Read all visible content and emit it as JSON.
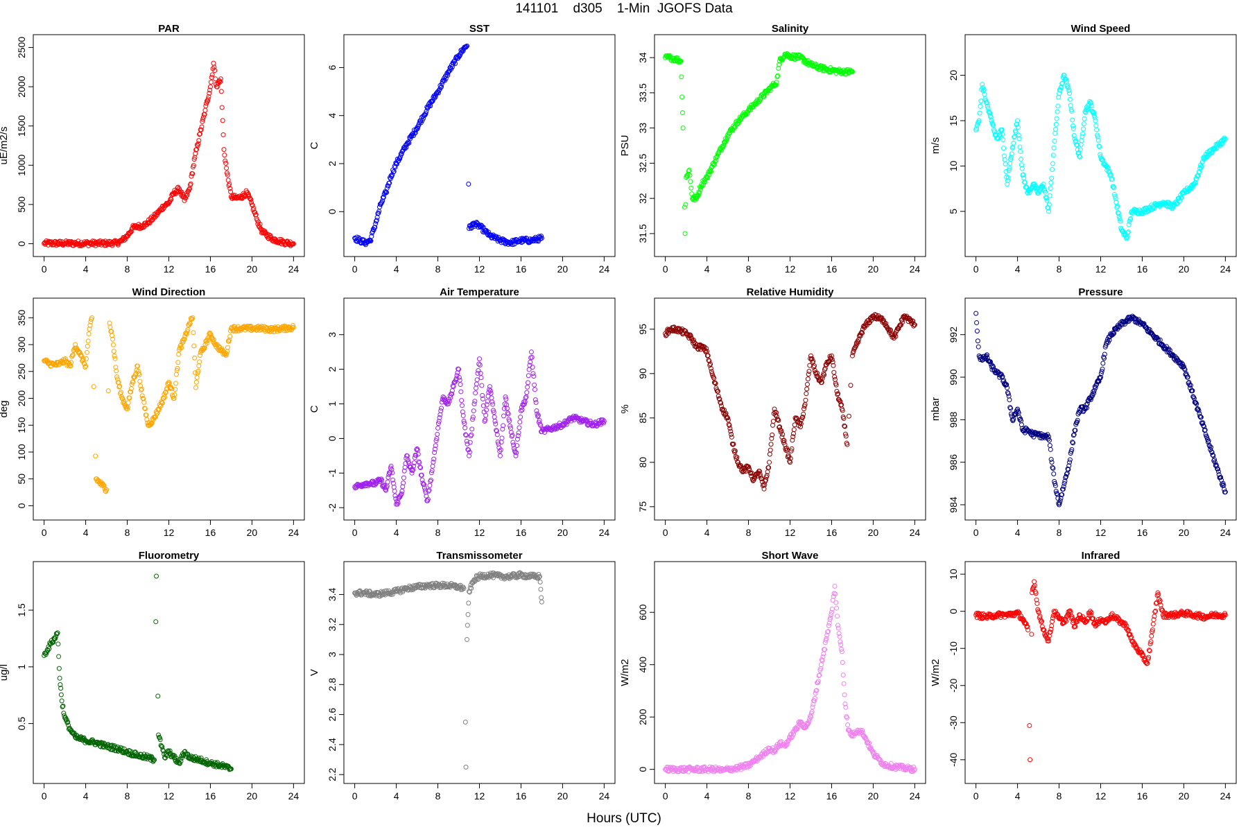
{
  "page": {
    "title": "141101    d305    1-Min  JGOFS Data",
    "xlabel": "Hours (UTC)"
  },
  "chart_data": [
    {
      "type": "scatter",
      "title": "PAR",
      "ylabel": "uE/m2/s",
      "color": "#ff0000",
      "xlim": [
        0,
        24
      ],
      "ylim": [
        -50,
        2550
      ],
      "xticks": [
        0,
        4,
        8,
        12,
        16,
        20,
        24
      ],
      "yticks": [
        0,
        500,
        1000,
        1500,
        2000,
        2500
      ],
      "x": [
        0,
        2,
        4,
        6,
        7,
        7.5,
        8,
        8.5,
        9,
        9.5,
        10,
        10.5,
        11,
        11.5,
        12,
        12.5,
        13,
        13.5,
        14,
        14.5,
        15,
        15.5,
        16,
        16.3,
        16.6,
        17,
        17.3,
        17.6,
        18,
        18.5,
        19,
        19.5,
        20,
        20.5,
        21,
        22,
        23,
        24
      ],
      "y": [
        5,
        5,
        5,
        5,
        10,
        40,
        100,
        200,
        220,
        230,
        270,
        330,
        400,
        480,
        520,
        650,
        700,
        550,
        700,
        1100,
        1400,
        1700,
        2000,
        2300,
        2000,
        2100,
        1200,
        900,
        600,
        580,
        600,
        650,
        500,
        300,
        150,
        60,
        20,
        0
      ]
    },
    {
      "type": "scatter",
      "title": "SST",
      "ylabel": "C",
      "color": "#0000ff",
      "xlim": [
        0,
        24
      ],
      "ylim": [
        -1.5,
        7
      ],
      "xticks": [
        0,
        4,
        8,
        12,
        16,
        20,
        24
      ],
      "yticks": [
        0,
        2,
        4,
        6
      ],
      "x": [
        0,
        0.5,
        1,
        1.5,
        2,
        2.5,
        3,
        3.5,
        4,
        5,
        6,
        7,
        8,
        9,
        10,
        10.5,
        10.8,
        11,
        11.5,
        12,
        12.5,
        13,
        14,
        15,
        16,
        17,
        18
      ],
      "y": [
        -1.1,
        -1.2,
        -1.3,
        -1.2,
        -0.5,
        0.3,
        0.8,
        1.5,
        2,
        2.8,
        3.5,
        4.3,
        5,
        5.8,
        6.5,
        6.8,
        6.9,
        -0.7,
        -0.5,
        -0.6,
        -0.8,
        -1.0,
        -1.2,
        -1.3,
        -1.2,
        -1.2,
        -1.1
      ]
    },
    {
      "type": "scatter",
      "title": "Salinity",
      "ylabel": "PSU",
      "color": "#00ff00",
      "xlim": [
        0,
        24
      ],
      "ylim": [
        31.3,
        34.2
      ],
      "xticks": [
        0,
        4,
        8,
        12,
        16,
        20,
        24
      ],
      "yticks": [
        31.5,
        32.0,
        32.5,
        33.0,
        33.5,
        34.0
      ],
      "x": [
        0,
        0.5,
        1,
        1.5,
        1.7,
        1.9,
        2,
        2.3,
        2.6,
        3,
        3.5,
        4,
        5,
        6,
        7,
        8,
        9,
        10,
        10.5,
        10.7,
        11,
        11.5,
        12,
        13,
        14,
        15,
        16,
        17,
        18
      ],
      "y": [
        34.0,
        34.0,
        33.98,
        33.95,
        33.0,
        31.5,
        32.3,
        32.4,
        32.0,
        32.0,
        32.2,
        32.3,
        32.6,
        32.9,
        33.1,
        33.25,
        33.4,
        33.55,
        33.62,
        33.65,
        33.95,
        34.05,
        34.02,
        34.0,
        33.9,
        33.85,
        33.82,
        33.8,
        33.8
      ]
    },
    {
      "type": "scatter",
      "title": "Wind Speed",
      "ylabel": "m/s",
      "color": "#00ffff",
      "xlim": [
        0,
        24
      ],
      "ylim": [
        1,
        23.5
      ],
      "xticks": [
        0,
        4,
        8,
        12,
        16,
        20,
        24
      ],
      "yticks": [
        5,
        10,
        15,
        20
      ],
      "x": [
        0,
        0.3,
        0.6,
        1,
        1.5,
        2,
        2.5,
        3,
        3.5,
        4,
        4.5,
        5,
        5.5,
        6,
        6.5,
        7,
        7.5,
        8,
        8.5,
        9,
        9.5,
        10,
        10.5,
        11,
        11.5,
        12,
        12.5,
        13,
        13.5,
        14,
        14.5,
        15,
        16,
        17,
        18,
        19,
        20,
        21,
        22,
        23,
        24
      ],
      "y": [
        14,
        15,
        19,
        17,
        15,
        13,
        14,
        8,
        12,
        15,
        9,
        7,
        8,
        7,
        8,
        5,
        12,
        18,
        20,
        18,
        13,
        11,
        16,
        17,
        15,
        11,
        10,
        9,
        6,
        3,
        2,
        5,
        5,
        5.5,
        6,
        5.5,
        7,
        8,
        11,
        12,
        13
      ]
    },
    {
      "type": "scatter",
      "title": "Wind Direction",
      "ylabel": "deg",
      "color": "#ffa500",
      "xlim": [
        0,
        24
      ],
      "ylim": [
        -10,
        370
      ],
      "xticks": [
        0,
        4,
        8,
        12,
        16,
        20,
        24
      ],
      "yticks": [
        0,
        50,
        100,
        150,
        200,
        250,
        300,
        350
      ],
      "x": [
        0,
        0.5,
        1,
        1.5,
        2,
        2.5,
        3,
        3.5,
        4,
        4.3,
        4.6,
        5,
        5.5,
        6,
        6.3,
        6.6,
        7,
        7.5,
        8,
        8.5,
        9,
        9.5,
        10,
        10.5,
        11,
        11.5,
        12,
        12.5,
        13,
        13.5,
        14,
        14.3,
        14.6,
        15,
        15.5,
        16,
        16.5,
        17,
        17.5,
        18,
        19,
        20,
        21,
        22,
        23,
        24
      ],
      "y": [
        270,
        265,
        262,
        265,
        270,
        260,
        300,
        280,
        260,
        320,
        350,
        50,
        40,
        30,
        340,
        310,
        240,
        200,
        180,
        230,
        260,
        200,
        150,
        160,
        180,
        200,
        230,
        200,
        290,
        310,
        340,
        350,
        220,
        280,
        300,
        320,
        300,
        290,
        280,
        330,
        330,
        330,
        330,
        328,
        330,
        332
      ]
    },
    {
      "type": "scatter",
      "title": "Air Temperature",
      "ylabel": "C",
      "color": "#a020f0",
      "xlim": [
        0,
        24
      ],
      "ylim": [
        -2.1,
        3.8
      ],
      "xticks": [
        0,
        4,
        8,
        12,
        16,
        20,
        24
      ],
      "yticks": [
        -2,
        -1,
        0,
        1,
        2,
        3
      ],
      "x": [
        0,
        0.5,
        1,
        1.5,
        2,
        2.5,
        3,
        3.5,
        4,
        4.5,
        5,
        5.5,
        6,
        6.5,
        7,
        7.5,
        8,
        8.5,
        9,
        9.5,
        10,
        10.5,
        11,
        11.5,
        12,
        12.5,
        13,
        13.5,
        14,
        14.5,
        15,
        15.5,
        16,
        16.5,
        17,
        17.5,
        18,
        19,
        20,
        21,
        22,
        23,
        24
      ],
      "y": [
        -1.4,
        -1.35,
        -1.3,
        -1.3,
        -1.3,
        -1.2,
        -1.5,
        -0.8,
        -1.9,
        -1.6,
        -0.5,
        -1.0,
        -0.3,
        -1.2,
        -1.8,
        -0.8,
        0.3,
        1.2,
        1.0,
        1.5,
        2.0,
        0.5,
        -0.5,
        1.0,
        2.3,
        0.5,
        1.5,
        0.5,
        -0.5,
        1.2,
        0.3,
        -0.5,
        0.8,
        1.2,
        2.5,
        0.8,
        0.2,
        0.3,
        0.4,
        0.6,
        0.5,
        0.4,
        0.5
      ]
    },
    {
      "type": "scatter",
      "title": "Relative Humidity",
      "ylabel": "%",
      "color": "#8b0000",
      "xlim": [
        0,
        24
      ],
      "ylim": [
        74.5,
        97.5
      ],
      "xticks": [
        0,
        4,
        8,
        12,
        16,
        20,
        24
      ],
      "yticks": [
        75,
        80,
        85,
        90,
        95
      ],
      "x": [
        0,
        0.5,
        1,
        1.5,
        2,
        2.5,
        3,
        3.5,
        4,
        4.5,
        5,
        5.5,
        6,
        6.5,
        7,
        7.5,
        8,
        8.5,
        9,
        9.5,
        10,
        10.5,
        11,
        11.5,
        12,
        12.5,
        13,
        13.5,
        14,
        14.5,
        15,
        15.5,
        16,
        16.5,
        17,
        17.5,
        18,
        19,
        20,
        21,
        22,
        23,
        24
      ],
      "y": [
        94.5,
        95,
        95,
        94.8,
        94.5,
        94,
        93,
        93,
        92.5,
        90,
        88,
        86,
        85,
        82,
        80,
        79,
        79.5,
        78,
        79,
        77,
        80,
        86,
        84,
        82,
        80,
        85,
        84,
        87,
        92,
        90,
        89,
        91,
        92,
        88,
        86,
        82,
        92,
        95,
        96.5,
        96,
        94,
        96.5,
        95.5
      ]
    },
    {
      "type": "scatter",
      "title": "Pressure",
      "ylabel": "mbar",
      "color": "#000080",
      "xlim": [
        0,
        24
      ],
      "ylim": [
        983.7,
        993.3
      ],
      "xticks": [
        0,
        4,
        8,
        12,
        16,
        20,
        24
      ],
      "yticks": [
        984,
        986,
        988,
        990,
        992
      ],
      "x": [
        0,
        0.3,
        0.6,
        1,
        1.5,
        2,
        2.5,
        3,
        3.5,
        4,
        4.5,
        5,
        5.5,
        6,
        6.5,
        7,
        7.3,
        7.6,
        8,
        8.5,
        9,
        9.5,
        10,
        10.5,
        11,
        11.5,
        12,
        12.5,
        13,
        14,
        15,
        16,
        17,
        18,
        19,
        20,
        21,
        22,
        23,
        24
      ],
      "y": [
        993,
        991,
        990.8,
        991,
        990.5,
        990.2,
        990,
        989.5,
        988,
        988.5,
        987.5,
        987.5,
        987.3,
        987.3,
        987.2,
        987.2,
        986,
        985,
        984,
        985,
        986,
        987.5,
        988.5,
        988.5,
        989,
        989.5,
        990,
        991.5,
        992,
        992.5,
        992.8,
        992.5,
        992,
        991.5,
        991,
        990.5,
        989,
        987.5,
        986,
        984.6
      ]
    },
    {
      "type": "scatter",
      "title": "Fluorometry",
      "ylabel": "ug/l",
      "color": "#006400",
      "xlim": [
        0,
        24
      ],
      "ylim": [
        0.05,
        1.85
      ],
      "xticks": [
        0,
        4,
        8,
        12,
        16,
        20,
        24
      ],
      "yticks": [
        0.5,
        1.0,
        1.5
      ],
      "x": [
        0,
        0.3,
        0.6,
        1,
        1.3,
        1.5,
        1.7,
        2,
        2.5,
        3,
        4,
        5,
        6,
        7,
        8,
        9,
        10,
        10.6,
        10.8,
        11,
        11.3,
        11.6,
        12,
        12.5,
        13,
        13.5,
        14,
        15,
        16,
        17,
        18
      ],
      "y": [
        1.1,
        1.15,
        1.2,
        1.25,
        1.3,
        0.9,
        0.7,
        0.55,
        0.45,
        0.38,
        0.35,
        0.33,
        0.3,
        0.28,
        0.25,
        0.22,
        0.2,
        0.18,
        1.8,
        0.4,
        0.3,
        0.2,
        0.25,
        0.2,
        0.15,
        0.25,
        0.2,
        0.18,
        0.15,
        0.13,
        0.1
      ]
    },
    {
      "type": "scatter",
      "title": "Transmissometer",
      "ylabel": "V",
      "color": "#808080",
      "xlim": [
        0,
        24
      ],
      "ylim": [
        2.2,
        3.56
      ],
      "xticks": [
        0,
        4,
        8,
        12,
        16,
        20,
        24
      ],
      "yticks": [
        2.2,
        2.4,
        2.6,
        2.8,
        3.0,
        3.2,
        3.4
      ],
      "x": [
        0,
        1,
        2,
        3,
        4,
        5,
        6,
        7,
        8,
        9,
        10,
        10.5,
        10.7,
        10.8,
        11,
        11.5,
        12,
        13,
        14,
        15,
        16,
        17,
        17.8,
        18
      ],
      "y": [
        3.41,
        3.41,
        3.4,
        3.41,
        3.42,
        3.44,
        3.45,
        3.46,
        3.46,
        3.46,
        3.45,
        3.44,
        2.25,
        3.1,
        3.42,
        3.5,
        3.52,
        3.53,
        3.52,
        3.52,
        3.53,
        3.52,
        3.52,
        3.35
      ]
    },
    {
      "type": "scatter",
      "title": "Short Wave",
      "ylabel": "W/m2",
      "color": "#ee82ee",
      "xlim": [
        0,
        24
      ],
      "ylim": [
        -20,
        760
      ],
      "xticks": [
        0,
        4,
        8,
        12,
        16,
        20,
        24
      ],
      "yticks": [
        0,
        200,
        400,
        600
      ],
      "x": [
        0,
        1,
        2,
        3,
        4,
        5,
        5.5,
        6,
        7,
        8,
        8.5,
        9,
        9.5,
        10,
        10.5,
        11,
        11.5,
        12,
        12.5,
        13,
        13.5,
        14,
        14.5,
        15,
        15.5,
        16,
        16.3,
        16.6,
        17,
        17.3,
        17.6,
        18,
        18.5,
        19,
        19.5,
        20,
        20.5,
        21,
        22,
        23,
        24
      ],
      "y": [
        0,
        0,
        0,
        0,
        0,
        0,
        -5,
        0,
        5,
        15,
        30,
        45,
        60,
        80,
        70,
        100,
        90,
        120,
        150,
        180,
        160,
        200,
        300,
        400,
        500,
        600,
        700,
        550,
        450,
        250,
        150,
        130,
        150,
        140,
        100,
        60,
        40,
        20,
        10,
        5,
        0
      ]
    },
    {
      "type": "scatter",
      "title": "Infrared",
      "ylabel": "W/m2",
      "color": "#ff0000",
      "xlim": [
        0,
        24
      ],
      "ylim": [
        -44,
        11
      ],
      "xticks": [
        0,
        4,
        8,
        12,
        16,
        20,
        24
      ],
      "yticks": [
        -40,
        -30,
        -20,
        -10,
        0,
        10
      ],
      "x": [
        0,
        1,
        2,
        3,
        4,
        4.5,
        5,
        5.2,
        5.4,
        5.6,
        6,
        6.5,
        7,
        7.5,
        8,
        8.5,
        9,
        9.5,
        10,
        10.5,
        11,
        11.5,
        12,
        12.5,
        13,
        13.5,
        14,
        14.5,
        15,
        15.5,
        16,
        16.5,
        17,
        17.5,
        18,
        19,
        20,
        21,
        22,
        23,
        24
      ],
      "y": [
        -1,
        -1.5,
        -1,
        -1,
        -0.5,
        -2,
        -5,
        -40,
        5,
        8,
        0,
        -5,
        -8,
        0,
        -2,
        -3,
        0,
        -4,
        -1,
        -3,
        0,
        -4,
        -2,
        -3,
        -1,
        -2,
        -3,
        -4,
        -8,
        -10,
        -12,
        -14,
        -5,
        5,
        -1,
        -1,
        -0.5,
        -1,
        -1.5,
        -1,
        -1
      ]
    }
  ]
}
